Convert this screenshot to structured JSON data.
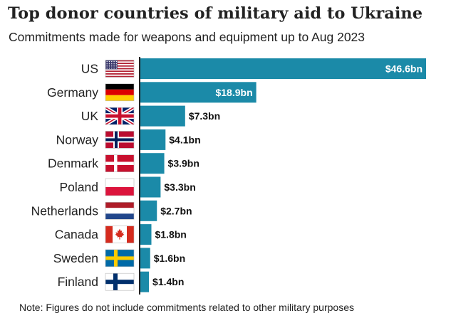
{
  "title": "Top donor countries of military aid to Ukraine",
  "subtitle": "Commitments made for weapons and equipment up to Aug 2023",
  "note": "Note: Figures do not include commitments related to other military purposes",
  "colors": {
    "bar": "#1b8aa8",
    "axis": "#222222",
    "label_inside": "#ffffff",
    "label_outside": "#111111"
  },
  "chart_data": {
    "type": "bar",
    "orientation": "horizontal",
    "categories": [
      "US",
      "Germany",
      "UK",
      "Norway",
      "Denmark",
      "Poland",
      "Netherlands",
      "Canada",
      "Sweden",
      "Finland"
    ],
    "values": [
      46.6,
      18.9,
      7.3,
      4.1,
      3.9,
      3.3,
      2.7,
      1.8,
      1.6,
      1.4
    ],
    "value_labels": [
      "$46.6bn",
      "$18.9bn",
      "$7.3bn",
      "$4.1bn",
      "$3.9bn",
      "$3.3bn",
      "$2.7bn",
      "$1.8bn",
      "$1.6bn",
      "$1.4bn"
    ],
    "flags": [
      "us-flag-icon",
      "germany-flag-icon",
      "uk-flag-icon",
      "norway-flag-icon",
      "denmark-flag-icon",
      "poland-flag-icon",
      "netherlands-flag-icon",
      "canada-flag-icon",
      "sweden-flag-icon",
      "finland-flag-icon"
    ],
    "title": "Top donor countries of military aid to Ukraine",
    "xlabel": "",
    "ylabel": "",
    "xlim": [
      0,
      46.6
    ],
    "grid": false,
    "legend": "none"
  }
}
